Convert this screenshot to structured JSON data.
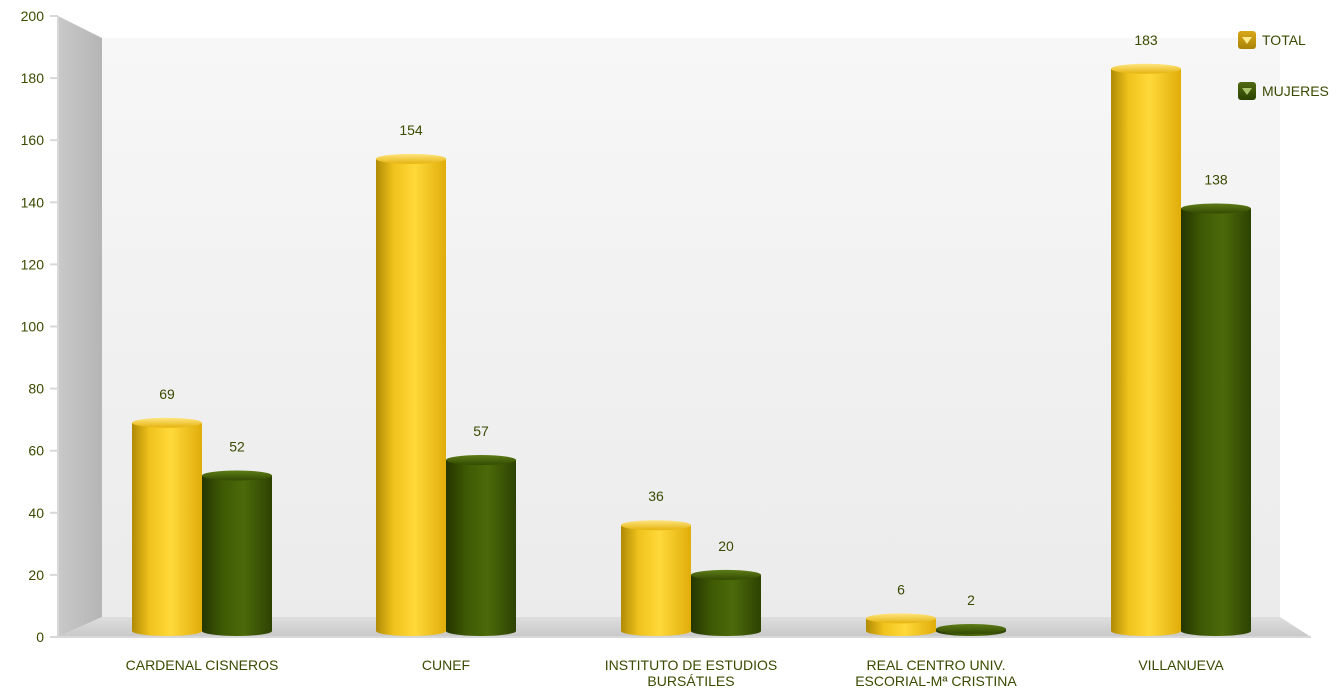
{
  "chart_data": {
    "type": "bar",
    "categories": [
      [
        "CARDENAL CISNEROS"
      ],
      [
        "CUNEF"
      ],
      [
        "INSTITUTO DE ESTUDIOS",
        "BURSÁTILES"
      ],
      [
        "REAL CENTRO UNIV.",
        "ESCORIAL-Mª CRISTINA"
      ],
      [
        "VILLANUEVA"
      ]
    ],
    "series": [
      {
        "name": "TOTAL",
        "values": [
          69,
          154,
          36,
          6,
          183
        ],
        "color": "#f2c41f"
      },
      {
        "name": "MUJERES",
        "values": [
          52,
          57,
          20,
          2,
          138
        ],
        "color": "#3f5a04"
      }
    ],
    "ylim": [
      0,
      200
    ],
    "yticks": [
      0,
      20,
      40,
      60,
      80,
      100,
      120,
      140,
      160,
      180,
      200
    ],
    "legend_position": "top-right",
    "grid": false,
    "style": "3d-cylinder"
  }
}
